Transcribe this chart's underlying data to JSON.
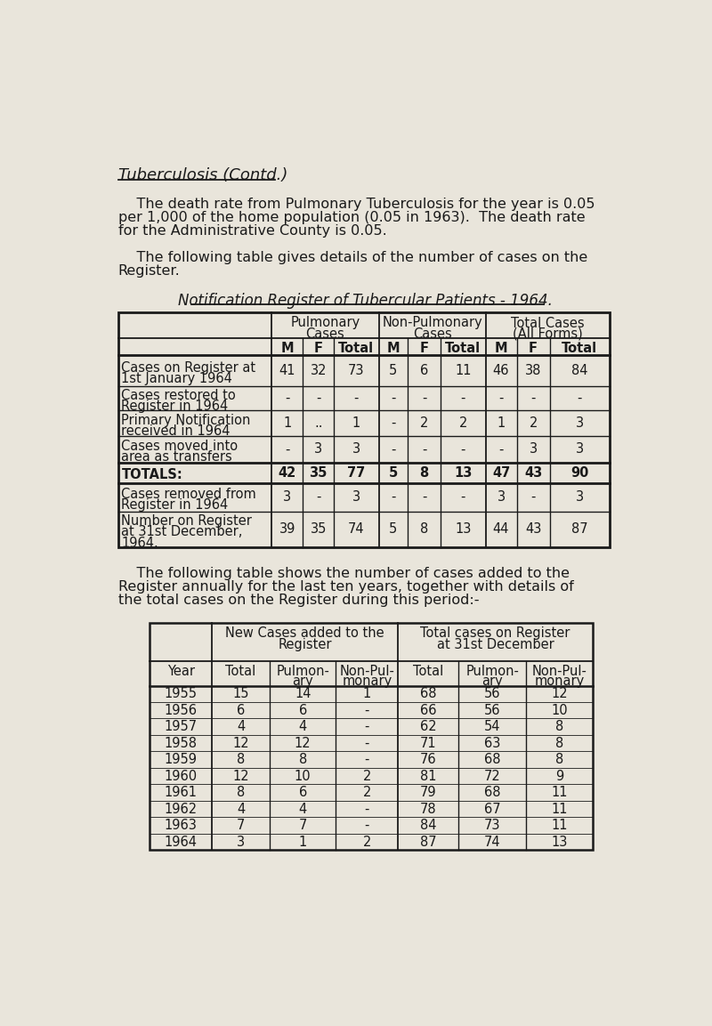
{
  "bg_color": "#e9e5db",
  "title": "Tuberculosis (Contd.)",
  "para1_lines": [
    "    The death rate from Pulmonary Tuberculosis for the year is 0.05",
    "per 1,000 of the home population (0.05 in 1963).  The death rate",
    "for the Administrative County is 0.05."
  ],
  "para2_lines": [
    "    The following table gives details of the number of cases on the",
    "Register."
  ],
  "table1_title": "Notification Register of Tubercular Patients - 1964.",
  "table1_rows": [
    [
      "Cases on Register at\n1st January 1964",
      "41",
      "32",
      "73",
      "5",
      "6",
      "11",
      "46",
      "38",
      "84"
    ],
    [
      "Cases restored to\nRegister in 1964",
      "-",
      "-",
      "-",
      "-",
      "-",
      "-",
      "-",
      "-",
      "-"
    ],
    [
      "Primary Notification\nreceived in 1964",
      "1",
      "..",
      "1",
      "-",
      "2",
      "2",
      "1",
      "2",
      "3"
    ],
    [
      "Cases moved into\narea as transfers",
      "-",
      "3",
      "3",
      "-",
      "-",
      "-",
      "-",
      "3",
      "3"
    ],
    [
      "TOTALS:",
      "42",
      "35",
      "77",
      "5",
      "8",
      "13",
      "47",
      "43",
      "90"
    ],
    [
      "Cases removed from\nRegister in 1964",
      "3",
      "-",
      "3",
      "-",
      "-",
      "-",
      "3",
      "-",
      "3"
    ],
    [
      "Number on Register\nat 31st December,\n1964.",
      "39",
      "35",
      "74",
      "5",
      "8",
      "13",
      "44",
      "43",
      "87"
    ]
  ],
  "para3_lines": [
    "    The following table shows the number of cases added to the",
    "Register annually for the last ten years, together with details of",
    "the total cases on the Register during this period:-"
  ],
  "table2_data": [
    [
      "1955",
      "15",
      "14",
      "1",
      "68",
      "56",
      "12"
    ],
    [
      "1956",
      "6",
      "6",
      "-",
      "66",
      "56",
      "10"
    ],
    [
      "1957",
      "4",
      "4",
      "-",
      "62",
      "54",
      "8"
    ],
    [
      "1958",
      "12",
      "12",
      "-",
      "71",
      "63",
      "8"
    ],
    [
      "1959",
      "8",
      "8",
      "-",
      "76",
      "68",
      "8"
    ],
    [
      "1960",
      "12",
      "10",
      "2",
      "81",
      "72",
      "9"
    ],
    [
      "1961",
      "8",
      "6",
      "2",
      "79",
      "68",
      "11"
    ],
    [
      "1962",
      "4",
      "4",
      "-",
      "78",
      "67",
      "11"
    ],
    [
      "1963",
      "7",
      "7",
      "-",
      "84",
      "73",
      "11"
    ],
    [
      "1964",
      "3",
      "1",
      "2",
      "87",
      "74",
      "13"
    ]
  ],
  "font_size_title": 13,
  "font_size_para": 11.5,
  "font_size_table": 10.5,
  "font_size_table1_title": 12,
  "line_color": "#1a1a1a",
  "text_color": "#1a1a1a"
}
